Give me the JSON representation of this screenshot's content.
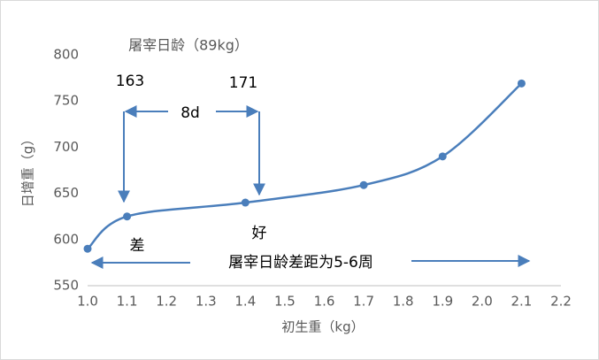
{
  "chart_data": {
    "type": "line",
    "title": "屠宰日龄（89kg）",
    "x_label": "初生重（kg）",
    "y_label": "日增重（g）",
    "series": [
      {
        "name": "日增重",
        "color": "#4a7ebb",
        "x": [
          1.0,
          1.1,
          1.4,
          1.7,
          1.9,
          2.1
        ],
        "values": [
          590,
          625,
          640,
          659,
          690,
          769
        ]
      }
    ],
    "xlim": [
      1.0,
      2.2
    ],
    "xticks": [
      {
        "value": 1,
        "label": "1.0"
      },
      1.1,
      1.2,
      1.3,
      1.4,
      1.5,
      1.6,
      1.7,
      1.8,
      1.9,
      {
        "value": 2,
        "label": "2.0"
      },
      2.1,
      2.2
    ],
    "ylim": [
      550,
      800
    ],
    "yticks": [
      550,
      600,
      650,
      700,
      750,
      800
    ],
    "annotations": [
      "163",
      "171",
      "8d",
      "差",
      "好",
      "屠宰日龄差距为5-6周"
    ]
  }
}
